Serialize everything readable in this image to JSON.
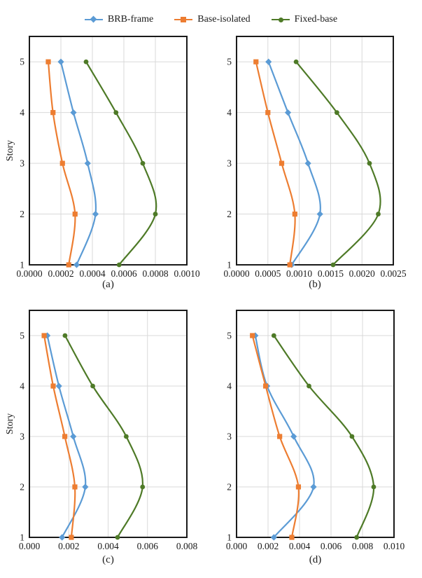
{
  "palette": {
    "brb": "#5B9BD5",
    "base_isolated": "#ED7D31",
    "fixed_base": "#4E7A27",
    "grid": "#D9D9D9",
    "frame": "#1A1A1A",
    "text": "#1A1A1A"
  },
  "legend": {
    "items": [
      {
        "label": "BRB-frame",
        "marker": "diamond",
        "color": "#5B9BD5"
      },
      {
        "label": "Base-isolated",
        "marker": "square",
        "color": "#ED7D31"
      },
      {
        "label": "Fixed-base",
        "marker": "circle",
        "color": "#4E7A27"
      }
    ]
  },
  "chart_data": [
    {
      "type": "line",
      "caption": "(a)",
      "ylabel": "Story",
      "xlabel": "",
      "xlim": [
        0,
        0.001
      ],
      "ylim": [
        1,
        5.5
      ],
      "x_tick_labels": [
        "0.0000",
        "0.0002",
        "0.0004",
        "0.0006",
        "0.0008",
        "0.0010"
      ],
      "x_tick_values": [
        0,
        0.0002,
        0.0004,
        0.0006,
        0.0008,
        0.001
      ],
      "y_tick_labels": [
        "1",
        "2",
        "3",
        "4",
        "5"
      ],
      "y_tick_values": [
        1,
        2,
        3,
        4,
        5
      ],
      "stories": [
        1,
        2,
        3,
        4,
        5
      ],
      "grid": true,
      "legend_position": "top",
      "series": [
        {
          "name": "BRB-frame",
          "marker": "diamond",
          "color": "#5B9BD5",
          "values": [
            0.0003,
            0.00042,
            0.00037,
            0.00028,
            0.0002
          ]
        },
        {
          "name": "Base-isolated",
          "marker": "square",
          "color": "#ED7D31",
          "values": [
            0.00025,
            0.00029,
            0.00021,
            0.00015,
            0.00012
          ]
        },
        {
          "name": "Fixed-base",
          "marker": "circle",
          "color": "#4E7A27",
          "values": [
            0.00057,
            0.0008,
            0.00072,
            0.00055,
            0.00036
          ]
        }
      ]
    },
    {
      "type": "line",
      "caption": "(b)",
      "ylabel": "",
      "xlabel": "",
      "xlim": [
        0,
        0.0025
      ],
      "ylim": [
        1,
        5.5
      ],
      "x_tick_labels": [
        "0.0000",
        "0.0005",
        "0.0010",
        "0.0015",
        "0.0020",
        "0.0025"
      ],
      "x_tick_values": [
        0,
        0.0005,
        0.001,
        0.0015,
        0.002,
        0.0025
      ],
      "y_tick_labels": [
        "1",
        "2",
        "3",
        "4",
        "5"
      ],
      "y_tick_values": [
        1,
        2,
        3,
        4,
        5
      ],
      "stories": [
        1,
        2,
        3,
        4,
        5
      ],
      "grid": true,
      "series": [
        {
          "name": "BRB-frame",
          "marker": "diamond",
          "color": "#5B9BD5",
          "values": [
            0.00088,
            0.00133,
            0.00114,
            0.00082,
            0.00051
          ]
        },
        {
          "name": "Base-isolated",
          "marker": "square",
          "color": "#ED7D31",
          "values": [
            0.00085,
            0.00093,
            0.00072,
            0.0005,
            0.00031
          ]
        },
        {
          "name": "Fixed-base",
          "marker": "circle",
          "color": "#4E7A27",
          "values": [
            0.00154,
            0.00226,
            0.00212,
            0.0016,
            0.00095
          ]
        }
      ]
    },
    {
      "type": "line",
      "caption": "(c)",
      "ylabel": "Story",
      "xlabel": "",
      "xlim": [
        0,
        0.008
      ],
      "ylim": [
        1,
        5.5
      ],
      "x_tick_labels": [
        "0.000",
        "0.002",
        "0.004",
        "0.006",
        "0.008"
      ],
      "x_tick_values": [
        0,
        0.002,
        0.004,
        0.006,
        0.008
      ],
      "y_tick_labels": [
        "1",
        "2",
        "3",
        "4",
        "5"
      ],
      "y_tick_values": [
        1,
        2,
        3,
        4,
        5
      ],
      "stories": [
        1,
        2,
        3,
        4,
        5
      ],
      "grid": true,
      "series": [
        {
          "name": "BRB-frame",
          "marker": "diamond",
          "color": "#5B9BD5",
          "values": [
            0.00166,
            0.00284,
            0.00223,
            0.0015,
            0.00091
          ]
        },
        {
          "name": "Base-isolated",
          "marker": "square",
          "color": "#ED7D31",
          "values": [
            0.00213,
            0.00231,
            0.0018,
            0.00121,
            0.00075
          ]
        },
        {
          "name": "Fixed-base",
          "marker": "circle",
          "color": "#4E7A27",
          "values": [
            0.00448,
            0.00575,
            0.00492,
            0.00322,
            0.00181
          ]
        }
      ]
    },
    {
      "type": "line",
      "caption": "(d)",
      "ylabel": "",
      "xlabel": "",
      "xlim": [
        0,
        0.01
      ],
      "ylim": [
        1,
        5.5
      ],
      "x_tick_labels": [
        "0.000",
        "0.002",
        "0.004",
        "0.006",
        "0.008",
        "0.010"
      ],
      "x_tick_values": [
        0,
        0.002,
        0.004,
        0.006,
        0.008,
        0.01
      ],
      "y_tick_labels": [
        "1",
        "2",
        "3",
        "4",
        "5"
      ],
      "y_tick_values": [
        1,
        2,
        3,
        4,
        5
      ],
      "stories": [
        1,
        2,
        3,
        4,
        5
      ],
      "grid": true,
      "series": [
        {
          "name": "BRB-frame",
          "marker": "diamond",
          "color": "#5B9BD5",
          "values": [
            0.00237,
            0.00489,
            0.00363,
            0.00194,
            0.00119
          ]
        },
        {
          "name": "Base-isolated",
          "marker": "square",
          "color": "#ED7D31",
          "values": [
            0.00351,
            0.00393,
            0.00274,
            0.00185,
            0.00101
          ]
        },
        {
          "name": "Fixed-base",
          "marker": "circle",
          "color": "#4E7A27",
          "values": [
            0.00763,
            0.00871,
            0.00733,
            0.0046,
            0.00237
          ]
        }
      ]
    }
  ]
}
